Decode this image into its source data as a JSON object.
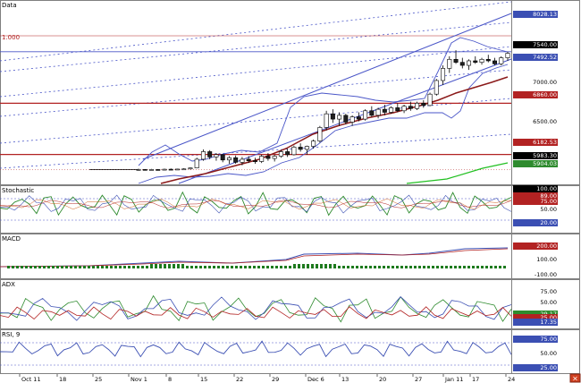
{
  "window": {
    "close_glyph": "×",
    "bg": "#ffffff",
    "frame_color": "#808080"
  },
  "panels": {
    "price": {
      "title": "Data",
      "fib_label": "1.000",
      "right_labels": [
        {
          "text": "8028.13",
          "bg": "#3b4fb3"
        },
        {
          "text": "7540.00",
          "bg": "#000000"
        },
        {
          "text": "7492.52",
          "bg": "#3b4fb3"
        },
        {
          "text": "7000.00",
          "bg": "#ffffff"
        },
        {
          "text": "6860.00",
          "bg": "#b22222"
        },
        {
          "text": "6500.00",
          "bg": "#ffffff"
        },
        {
          "text": "6182.53",
          "bg": "#b22222"
        },
        {
          "text": "5983.30",
          "bg": "#000000"
        },
        {
          "text": "5904.03",
          "bg": "#2e8b2e"
        }
      ]
    },
    "stochastic": {
      "title": "Stochastic",
      "right_labels": [
        {
          "text": "100.00",
          "bg": "#000000"
        },
        {
          "text": "89.00",
          "bg": "#b22222"
        },
        {
          "text": "75.00",
          "bg": "#b22222"
        },
        {
          "text": "50.00",
          "bg": "#ffffff"
        },
        {
          "text": "20.00",
          "bg": "#3b4fb3"
        }
      ]
    },
    "macd": {
      "title": "MACD",
      "right_labels": [
        {
          "text": "200.00",
          "bg": "#b22222"
        },
        {
          "text": "100.00",
          "bg": "#ffffff"
        },
        {
          "text": "-100.00",
          "bg": "#ffffff"
        }
      ]
    },
    "adx": {
      "title": "ADX",
      "right_labels": [
        {
          "text": "75.00",
          "bg": "#ffffff"
        },
        {
          "text": "50.00",
          "bg": "#ffffff"
        },
        {
          "text": "29.17",
          "bg": "#2e8b2e"
        },
        {
          "text": "25.00",
          "bg": "#b22222"
        },
        {
          "text": "17.35",
          "bg": "#3b4fb3"
        }
      ]
    },
    "rsi": {
      "title": "RSI, 9",
      "right_labels": [
        {
          "text": "75.00",
          "bg": "#3b4fb3"
        },
        {
          "text": "50.00",
          "bg": "#ffffff"
        },
        {
          "text": "25.00",
          "bg": "#3b4fb3"
        }
      ]
    }
  },
  "x_axis": {
    "labels": [
      "Oct 11",
      "18",
      "25",
      "Nov 1",
      "8",
      "15",
      "22",
      "29",
      "Dec 6",
      "13",
      "20",
      "27",
      "Jan 11",
      "17",
      "24"
    ]
  },
  "chart_data": {
    "type": "candlestick",
    "ohlc": [
      [
        5980,
        5995,
        5970,
        5985
      ],
      [
        5985,
        5990,
        5975,
        5980
      ],
      [
        5980,
        5992,
        5972,
        5984
      ],
      [
        5984,
        5990,
        5976,
        5982
      ],
      [
        5982,
        5995,
        5975,
        5988
      ],
      [
        5988,
        5998,
        5980,
        5986
      ],
      [
        5986,
        5994,
        5978,
        5990
      ],
      [
        5990,
        6000,
        5982,
        5992
      ],
      [
        5992,
        6010,
        5985,
        6005
      ],
      [
        6005,
        6140,
        6000,
        6120
      ],
      [
        6120,
        6250,
        6100,
        6220
      ],
      [
        6220,
        6240,
        6120,
        6150
      ],
      [
        6150,
        6200,
        6100,
        6180
      ],
      [
        6180,
        6190,
        6080,
        6110
      ],
      [
        6110,
        6160,
        6060,
        6140
      ],
      [
        6140,
        6170,
        6060,
        6080
      ],
      [
        6080,
        6150,
        6040,
        6120
      ],
      [
        6120,
        6160,
        6070,
        6100
      ],
      [
        6100,
        6140,
        6060,
        6090
      ],
      [
        6090,
        6180,
        6070,
        6160
      ],
      [
        6160,
        6200,
        6100,
        6130
      ],
      [
        6130,
        6180,
        6090,
        6160
      ],
      [
        6160,
        6240,
        6140,
        6220
      ],
      [
        6220,
        6260,
        6150,
        6180
      ],
      [
        6180,
        6300,
        6170,
        6280
      ],
      [
        6280,
        6330,
        6220,
        6250
      ],
      [
        6250,
        6300,
        6180,
        6290
      ],
      [
        6290,
        6380,
        6260,
        6360
      ],
      [
        6360,
        6560,
        6340,
        6540
      ],
      [
        6540,
        6760,
        6500,
        6720
      ],
      [
        6720,
        6780,
        6600,
        6650
      ],
      [
        6650,
        6740,
        6560,
        6700
      ],
      [
        6700,
        6720,
        6580,
        6610
      ],
      [
        6610,
        6700,
        6560,
        6680
      ],
      [
        6680,
        6740,
        6620,
        6650
      ],
      [
        6650,
        6780,
        6630,
        6760
      ],
      [
        6760,
        6820,
        6680,
        6700
      ],
      [
        6700,
        6800,
        6660,
        6780
      ],
      [
        6780,
        6840,
        6700,
        6740
      ],
      [
        6740,
        6820,
        6720,
        6800
      ],
      [
        6800,
        6860,
        6740,
        6760
      ],
      [
        6760,
        6840,
        6730,
        6820
      ],
      [
        6820,
        6880,
        6760,
        6790
      ],
      [
        6790,
        6880,
        6770,
        6860
      ],
      [
        6860,
        6900,
        6800,
        6830
      ],
      [
        6830,
        7000,
        6820,
        6980
      ],
      [
        6980,
        7180,
        6960,
        7160
      ],
      [
        7160,
        7360,
        7100,
        7320
      ],
      [
        7320,
        7480,
        7260,
        7440
      ],
      [
        7440,
        7560,
        7380,
        7400
      ],
      [
        7400,
        7460,
        7320,
        7360
      ],
      [
        7360,
        7440,
        7300,
        7420
      ],
      [
        7420,
        7480,
        7380,
        7400
      ],
      [
        7400,
        7460,
        7370,
        7440
      ],
      [
        7440,
        7500,
        7400,
        7420
      ],
      [
        7420,
        7460,
        7360,
        7380
      ],
      [
        7380,
        7480,
        7360,
        7460
      ],
      [
        7460,
        7540,
        7420,
        7520
      ]
    ],
    "levels": [
      6860,
      6182.53,
      7540,
      8028.13,
      5904.03
    ],
    "y_range": [
      5800,
      8200
    ]
  }
}
